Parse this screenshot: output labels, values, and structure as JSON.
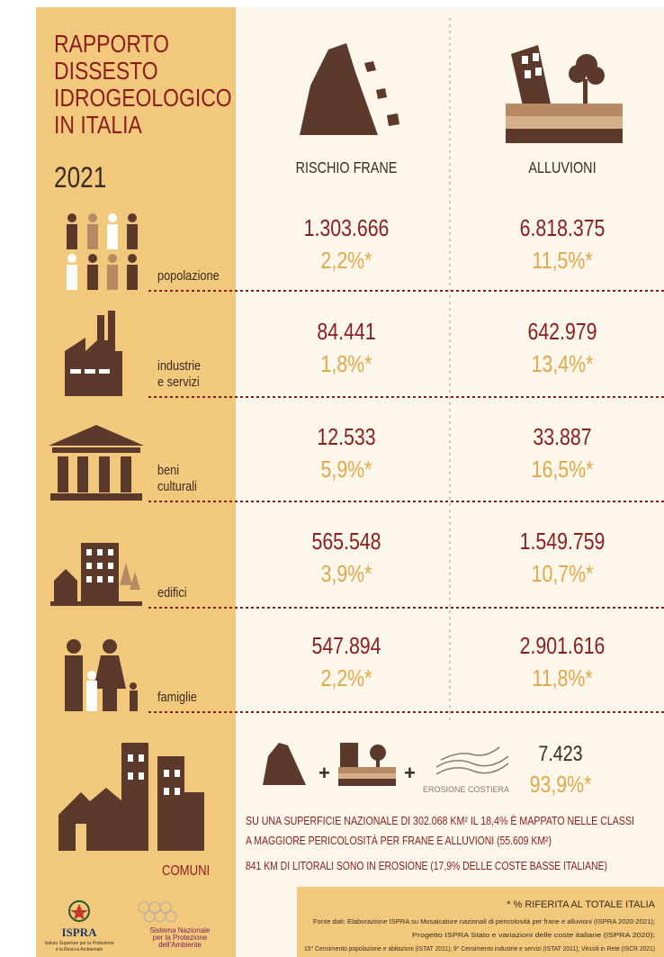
{
  "header": {
    "title_lines": [
      "RAPPORTO",
      "DISSESTO",
      "IDROGEOLOGICO",
      "IN ITALIA"
    ],
    "year": "2021"
  },
  "columns": [
    "RISCHIO FRANE",
    "ALLUVIONI"
  ],
  "rows": [
    {
      "label_lines": [
        "popolazione"
      ],
      "frane": {
        "value": "1.303.666",
        "percent": "2,2%*"
      },
      "alluvioni": {
        "value": "6.818.375",
        "percent": "11,5%*"
      }
    },
    {
      "label_lines": [
        "industrie",
        "e servizi"
      ],
      "frane": {
        "value": "84.441",
        "percent": "1,8%*"
      },
      "alluvioni": {
        "value": "642.979",
        "percent": "13,4%*"
      }
    },
    {
      "label_lines": [
        "beni",
        "culturali"
      ],
      "frane": {
        "value": "12.533",
        "percent": "5,9%*"
      },
      "alluvioni": {
        "value": "33.887",
        "percent": "16,5%*"
      }
    },
    {
      "label_lines": [
        "edifici"
      ],
      "frane": {
        "value": "565.548",
        "percent": "3,9%*"
      },
      "alluvioni": {
        "value": "1.549.759",
        "percent": "10,7%*"
      }
    },
    {
      "label_lines": [
        "famiglie"
      ],
      "frane": {
        "value": "547.894",
        "percent": "2,2%*"
      },
      "alluvioni": {
        "value": "2.901.616",
        "percent": "11,8%*"
      }
    }
  ],
  "comuni": {
    "label": "COMUNI",
    "erosion_label": "EROSIONE COSTIERA",
    "value": "7.423",
    "percent": "93,9%*",
    "notes": [
      "SU UNA SUPERFICIE NAZIONALE DI 302.068 KM² IL 18,4% È MAPPATO NELLE CLASSI",
      "A MAGGIORE PERICOLOSITÀ PER FRANE E ALLUVIONI (55.609 KM²)",
      "841 KM DI LITORALI SONO IN EROSIONE (17,9% DELLE COSTE BASSE ITALIANE)"
    ]
  },
  "footer": {
    "note": "* % RIFERITA AL TOTALE ITALIA",
    "sources": [
      "Fonte dati: Elaborazione ISPRA su Mosaicature nazionali di pericolosità per frane e alluvioni (ISPRA 2020-2021);",
      "Progetto ISPRA Stato e variazioni delle coste italiane (ISPRA 2020);",
      "15° Censimento popolazione e abitazioni (ISTAT 2011); 9° Censimento industrie e servizi (ISTAT 2011); Vincoli in Rete (ISCR 2021)"
    ],
    "ispra": "ISPRA",
    "ispra_sub": [
      "Istituto Superiore per la Protezione",
      "e la Ricerca Ambientale"
    ],
    "snpa": [
      "Sistema Nazionale",
      "per la Protezione",
      "dell'Ambiente"
    ]
  }
}
